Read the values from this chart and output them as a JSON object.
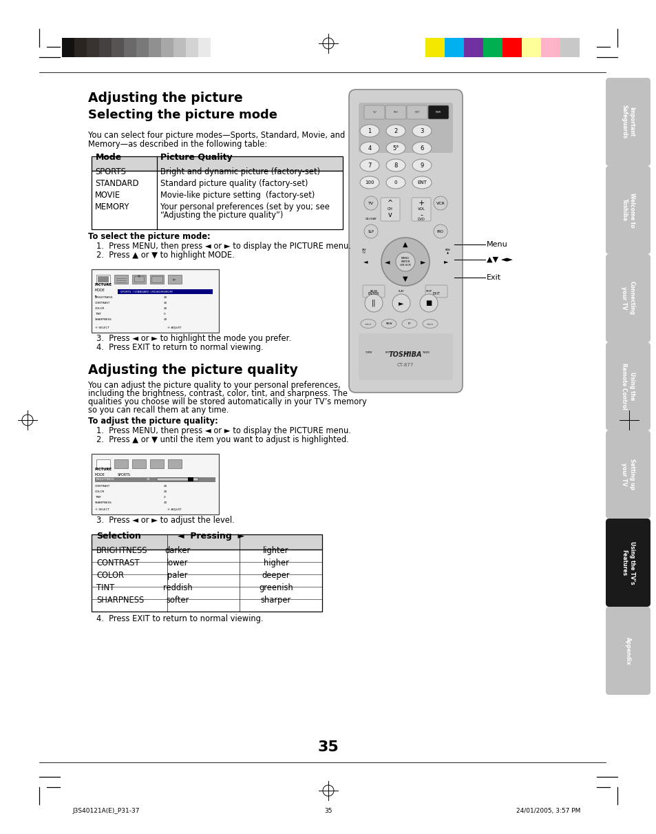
{
  "page_bg": "#ffffff",
  "page_width": 9.54,
  "page_height": 12.11,
  "top_bar_colors_left": [
    "#111111",
    "#2a2520",
    "#373230",
    "#454140",
    "#565352",
    "#6a6868",
    "#7a7979",
    "#919090",
    "#a8a7a7",
    "#bdbdbd",
    "#d3d3d3",
    "#e9e9e9"
  ],
  "top_bar_colors_right": [
    "#f5e800",
    "#00b0f0",
    "#7030a0",
    "#00b050",
    "#ff0000",
    "#ffff99",
    "#ffb3c6",
    "#c8c8c8"
  ],
  "section_tabs": [
    {
      "label": "Important\nSafeguards",
      "active": false
    },
    {
      "label": "Welcome to\nToshiba",
      "active": false
    },
    {
      "label": "Connecting\nyour TV",
      "active": false
    },
    {
      "label": "Using the\nRemote Control",
      "active": false
    },
    {
      "label": "Setting up\nyour TV",
      "active": false
    },
    {
      "label": "Using the TV’s\nFeatures",
      "active": true
    },
    {
      "label": "Appendix",
      "active": false
    }
  ],
  "title1": "Adjusting the picture",
  "title2": "Selecting the picture mode",
  "title3": "Adjusting the picture quality",
  "intro_text1": "You can select four picture modes—Sports, Standard, Movie, and",
  "intro_text2": "Memory—as described in the following table:",
  "table1_header": [
    "Mode",
    "Picture Quality"
  ],
  "table1_rows": [
    [
      "SPORTS",
      "Bright and dynamic picture (factory-set)"
    ],
    [
      "STANDARD",
      "Standard picture quality (factory-set)"
    ],
    [
      "MOVIE",
      "Movie-like picture setting  (factory-set)"
    ],
    [
      "MEMORY",
      "Your personal preferences (set by you; see\n“Adjusting the picture quality”)"
    ]
  ],
  "select_mode_label": "To select the picture mode:",
  "select_mode_steps": [
    "1.  Press MENU, then press ◄ or ► to display the PICTURE menu.",
    "2.  Press ▲ or ▼ to highlight MODE."
  ],
  "select_mode_steps2": [
    "3.  Press ◄ or ► to highlight the mode you prefer.",
    "4.  Press EXIT to return to normal viewing."
  ],
  "quality_intro1": "You can adjust the picture quality to your personal preferences,",
  "quality_intro2": "including the brightness, contrast, color, tint, and sharpness. The",
  "quality_intro3": "qualities you choose will be stored automatically in your TV’s memory",
  "quality_intro4": "so you can recall them at any time.",
  "adjust_quality_label": "To adjust the picture quality:",
  "adjust_quality_steps": [
    "1.  Press MENU, then press ◄ or ► to display the PICTURE menu.",
    "2.  Press ▲ or ▼ until the item you want to adjust is highlighted."
  ],
  "adjust_quality_step3": "3.  Press ◄ or ► to adjust the level.",
  "adjust_quality_step4": "4.  Press EXIT to return to normal viewing.",
  "table2_header_col1": "Selection",
  "table2_header_col2": "◄  Pressing  ►",
  "table2_rows": [
    [
      "BRIGHTNESS",
      "darker",
      "lighter"
    ],
    [
      "CONTRAST",
      "lower",
      "higher"
    ],
    [
      "COLOR",
      "paler",
      "deeper"
    ],
    [
      "TINT",
      "reddish",
      "greenish"
    ],
    [
      "SHARPNESS",
      "softer",
      "sharper"
    ]
  ],
  "page_number": "35",
  "footer_left": "J3S40121A(E)_P31-37",
  "footer_center": "35",
  "footer_right": "24/01/2005, 3:57 PM",
  "menu_label": "Menu",
  "arrows_label": "▲▼ ◄►",
  "exit_label": "Exit"
}
